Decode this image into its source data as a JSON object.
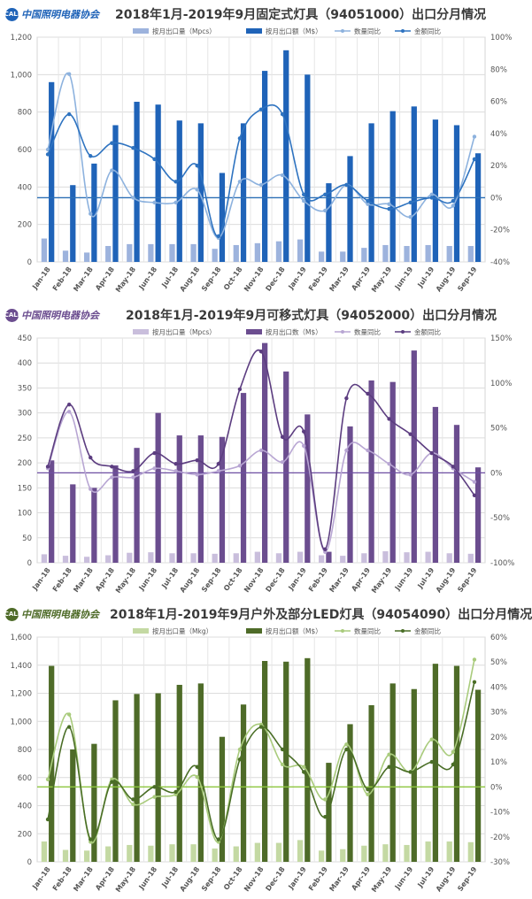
{
  "panels": [
    {
      "logo_text": "中国照明电器协会",
      "logo_mark": "CALI",
      "title": "2018年1月-2019年9月固定式灯具（94051000）出口分月情况",
      "colors": {
        "qty_bar": "#9db3dd",
        "amt_bar": "#1f63b8",
        "qty_line": "#8db2de",
        "amt_line": "#2e73c0",
        "zero_line": "#2b6fb5"
      },
      "chart_data": {
        "type": "bar",
        "categories": [
          "Jan-18",
          "Feb-18",
          "Mar-18",
          "Apr-18",
          "May-18",
          "Jun-18",
          "Jul-18",
          "Aug-18",
          "Sep-18",
          "Oct-18",
          "Nov-18",
          "Dec-18",
          "Jan-19",
          "Feb-19",
          "Mar-19",
          "Apr-19",
          "May-19",
          "Jun-19",
          "Jul-19",
          "Aug-19",
          "Sep-19"
        ],
        "ylim": [
          0,
          1200
        ],
        "y_ticks": [
          "0",
          "200",
          "400",
          "600",
          "800",
          "1,000",
          "1,200"
        ],
        "y2lim": [
          -40,
          100
        ],
        "y2_ticks": [
          "-40%",
          "-20%",
          "0%",
          "20%",
          "40%",
          "60%",
          "80%",
          "100%"
        ],
        "legend": [
          "按月出口量（Mpcs）",
          "按月出口额（M$）",
          "数量同比",
          "金额同比"
        ],
        "series": [
          {
            "name": "按月出口量（Mpcs）",
            "type": "bar",
            "axis": "left",
            "values": [
              125,
              60,
              50,
              85,
              95,
              95,
              95,
              95,
              70,
              90,
              100,
              110,
              120,
              55,
              55,
              75,
              90,
              85,
              90,
              85,
              85
            ]
          },
          {
            "name": "按月出口额（M$）",
            "type": "bar",
            "axis": "left",
            "values": [
              960,
              410,
              525,
              730,
              855,
              840,
              755,
              740,
              475,
              740,
              1020,
              1130,
              1000,
              420,
              565,
              740,
              805,
              830,
              760,
              730,
              580
            ]
          },
          {
            "name": "数量同比",
            "type": "line",
            "axis": "right",
            "values": [
              30,
              77,
              -10,
              17,
              0,
              -3,
              -3,
              5,
              -25,
              10,
              8,
              14,
              -2,
              -8,
              8,
              -4,
              -4,
              -12,
              2,
              -5,
              38
            ]
          },
          {
            "name": "金额同比",
            "type": "line",
            "axis": "right",
            "values": [
              27,
              52,
              26,
              34,
              31,
              24,
              10,
              20,
              -24,
              37,
              55,
              52,
              2,
              2,
              8,
              -2,
              -7,
              -3,
              0,
              -2,
              24
            ]
          }
        ]
      }
    },
    {
      "logo_text": "中国照明电器协会",
      "logo_mark": "CALI",
      "title": "2018年1月-2019年9月可移式灯具（94052000）出口分月情况",
      "colors": {
        "qty_bar": "#c9bedc",
        "amt_bar": "#6b4d8f",
        "qty_line": "#b8a6d3",
        "amt_line": "#5c3d80",
        "zero_line": "#6e4fa2"
      },
      "chart_data": {
        "type": "bar",
        "categories": [
          "Jan-18",
          "Feb-18",
          "Mar-18",
          "Apr-18",
          "May-18",
          "Jun-18",
          "Jul-18",
          "Aug-18",
          "Sep-18",
          "Oct-18",
          "Nov-18",
          "Dec-18",
          "Jan-19",
          "Feb-19",
          "Mar-19",
          "Apr-19",
          "May-19",
          "Jun-19",
          "Jul-19",
          "Aug-19",
          "Sep-19"
        ],
        "ylim": [
          0,
          450
        ],
        "y_ticks": [
          "0",
          "50",
          "100",
          "150",
          "200",
          "250",
          "300",
          "350",
          "400",
          "450"
        ],
        "y2lim": [
          -100,
          150
        ],
        "y2_ticks": [
          "-100%",
          "-50%",
          "0%",
          "50%",
          "100%",
          "150%"
        ],
        "legend": [
          "按月出口量（Mpcs）",
          "按月出口数（M$）",
          "数量同比",
          "金额同比"
        ],
        "series": [
          {
            "name": "按月出口量（Mpcs）",
            "type": "bar",
            "axis": "left",
            "values": [
              17,
              14,
              12,
              15,
              20,
              21,
              19,
              19,
              18,
              19,
              22,
              19,
              22,
              15,
              14,
              19,
              23,
              21,
              22,
              19,
              18
            ]
          },
          {
            "name": "按月出口数（M$）",
            "type": "bar",
            "axis": "left",
            "values": [
              205,
              157,
              150,
              195,
              230,
              300,
              255,
              255,
              252,
              340,
              440,
              383,
              297,
              22,
              273,
              365,
              362,
              425,
              312,
              276,
              191
            ]
          },
          {
            "name": "数量同比",
            "type": "line",
            "axis": "right",
            "values": [
              5,
              68,
              -18,
              -5,
              -5,
              5,
              2,
              -2,
              2,
              8,
              25,
              12,
              30,
              -88,
              25,
              25,
              10,
              -2,
              22,
              5,
              -10
            ]
          },
          {
            "name": "金额同比",
            "type": "line",
            "axis": "right",
            "values": [
              7,
              76,
              17,
              7,
              2,
              22,
              10,
              14,
              10,
              93,
              135,
              40,
              46,
              -85,
              83,
              88,
              60,
              43,
              22,
              7,
              -25
            ]
          }
        ]
      }
    },
    {
      "logo_text": "中国照明电器协会",
      "logo_mark": "CALI",
      "title": "2018年1月-2019年9月户外及部分LED灯具（94054090）出口分月情况",
      "colors": {
        "qty_bar": "#c4d9a3",
        "amt_bar": "#4e6b28",
        "qty_line": "#a9cb7c",
        "amt_line": "#4a6e26",
        "zero_line": "#8ec63f"
      },
      "chart_data": {
        "type": "bar",
        "categories": [
          "Jan-18",
          "Feb-18",
          "Mar-18",
          "Apr-18",
          "May-18",
          "Jun-18",
          "Jul-18",
          "Aug-18",
          "Sep-18",
          "Oct-18",
          "Nov-18",
          "Dec-18",
          "Jan-19",
          "Feb-19",
          "Mar-19",
          "Apr-19",
          "May-19",
          "Jun-19",
          "Jul-19",
          "Aug-19",
          "Sep-19"
        ],
        "ylim": [
          0,
          1600
        ],
        "y_ticks": [
          "0",
          "200",
          "400",
          "600",
          "800",
          "1,000",
          "1,200",
          "1,400",
          "1,600"
        ],
        "y2lim": [
          -30,
          60
        ],
        "y2_ticks": [
          "-30%",
          "-20%",
          "-10%",
          "0%",
          "10%",
          "20%",
          "30%",
          "40%",
          "50%",
          "60%"
        ],
        "legend": [
          "按月出口量（Mkg）",
          "按月出口额（M$）",
          "数量同比",
          "金额同比"
        ],
        "series": [
          {
            "name": "按月出口量（Mkg）",
            "type": "bar",
            "axis": "left",
            "values": [
              145,
              85,
              80,
              110,
              120,
              115,
              125,
              125,
              95,
              110,
              135,
              135,
              155,
              80,
              90,
              115,
              125,
              120,
              145,
              145,
              140
            ]
          },
          {
            "name": "按月出口额（M$）",
            "type": "bar",
            "axis": "left",
            "values": [
              1395,
              800,
              840,
              1150,
              1195,
              1200,
              1260,
              1270,
              890,
              1120,
              1430,
              1425,
              1450,
              705,
              980,
              1115,
              1270,
              1230,
              1410,
              1395,
              1225
            ]
          },
          {
            "name": "数量同比",
            "type": "line",
            "axis": "right",
            "values": [
              3,
              29,
              -22,
              3,
              -7,
              -4,
              -3,
              4,
              -22,
              15,
              25,
              9,
              8,
              -5,
              17,
              -3,
              13,
              6,
              19,
              14,
              51
            ]
          },
          {
            "name": "金额同比",
            "type": "line",
            "axis": "right",
            "values": [
              -13,
              24,
              -21,
              2,
              -5,
              0,
              -2,
              8,
              -21,
              11,
              24,
              15,
              6,
              -12,
              15,
              -1,
              8,
              6,
              10,
              9,
              42
            ]
          }
        ]
      }
    }
  ]
}
